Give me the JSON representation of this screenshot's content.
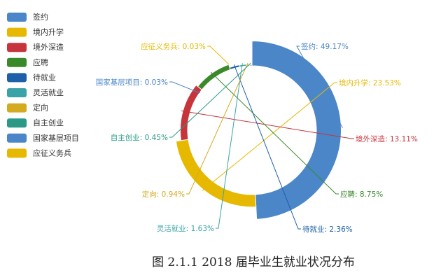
{
  "chart_data": {
    "type": "pie",
    "variant": "donut-rose",
    "categories": [
      "签约",
      "境内升学",
      "境外深造",
      "应聘",
      "待就业",
      "灵活就业",
      "定向",
      "自主创业",
      "国家基层项目",
      "应征义务兵"
    ],
    "values": [
      49.17,
      23.53,
      13.11,
      8.75,
      2.36,
      1.63,
      0.94,
      0.45,
      0.03,
      0.03
    ],
    "value_labels": [
      "签约: 49.17%",
      "境内升学: 23.53%",
      "境外深造: 13.11%",
      "应聘: 8.75%",
      "待就业: 2.36%",
      "灵活就业: 1.63%",
      "定向: 0.94%",
      "自主创业: 0.45%",
      "国家基层项目: 0.03%",
      "应征义务兵: 0.03%"
    ],
    "colors": [
      "#4a86c8",
      "#e6b800",
      "#c7353c",
      "#3a8a2a",
      "#1d5fa8",
      "#3aa3a8",
      "#d4aa20",
      "#2a9a86",
      "#4a86c8",
      "#e6b800"
    ],
    "legend": {
      "entries": [
        "签约",
        "境内升学",
        "境外深造",
        "应聘",
        "待就业",
        "灵活就业",
        "定向",
        "自主创业",
        "国家基层项目",
        "应征义务兵"
      ],
      "position": "left"
    },
    "unit": "%",
    "caption": "图  2.1.1     2018 届毕业生就业状况分布"
  }
}
